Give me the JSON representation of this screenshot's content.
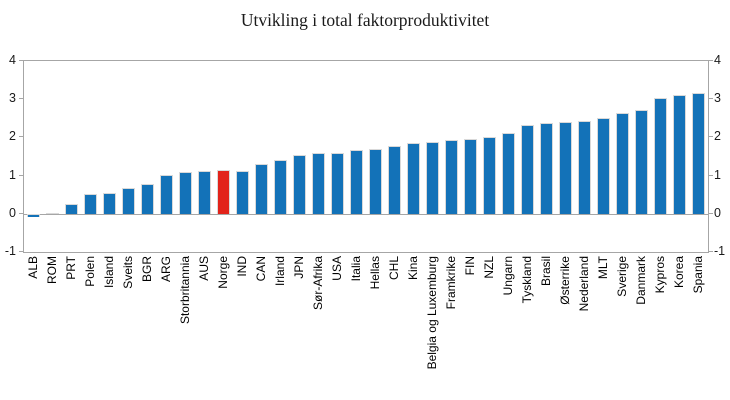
{
  "title": "Utvikling i total faktorproduktivitet",
  "chart_data": {
    "type": "bar",
    "title": "Utvikling i total faktorproduktivitet",
    "categories": [
      "ALB",
      "ROM",
      "PRT",
      "Polen",
      "Island",
      "Sveits",
      "BGR",
      "ARG",
      "Storbritannia",
      "AUS",
      "Norge",
      "IND",
      "CAN",
      "Irland",
      "JPN",
      "Sør-Afrika",
      "USA",
      "Italia",
      "Hellas",
      "CHL",
      "Kina",
      "Belgia og Luxemburg",
      "Framkrike",
      "FIN",
      "NZL",
      "Ungarn",
      "Tyskland",
      "Brasil",
      "Østerrike",
      "Nederland",
      "MLT",
      "Sverige",
      "Danmark",
      "Kypros",
      "Korea",
      "Spania"
    ],
    "values": [
      -0.08,
      0.02,
      0.26,
      0.53,
      0.55,
      0.67,
      0.78,
      1.02,
      1.1,
      1.12,
      1.15,
      1.13,
      1.3,
      1.4,
      1.55,
      1.58,
      1.6,
      1.67,
      1.7,
      1.77,
      1.85,
      1.87,
      1.92,
      1.97,
      2.0,
      2.12,
      2.32,
      2.39,
      2.4,
      2.44,
      2.5,
      2.64,
      2.71,
      3.04,
      3.1,
      3.16
    ],
    "highlight": {
      "category": "Norge",
      "color": "#e2231a"
    },
    "bar_color": "#1372b8",
    "xlabel": "",
    "ylabel": "",
    "ylim": [
      -1,
      4
    ],
    "yticks": [
      4,
      3,
      2,
      1,
      0,
      -1
    ],
    "ytick_labels": [
      "4",
      "3",
      "2",
      "1",
      "0",
      "-1"
    ],
    "axis_sides": [
      "left",
      "right"
    ],
    "grid": false,
    "zero_line": true,
    "legend": "none"
  },
  "colors": {
    "bar": "#1372b8",
    "highlight": "#e2231a",
    "axis": "#a6a6a6",
    "bar_border": "#d9d9d9",
    "text": "#000000"
  }
}
